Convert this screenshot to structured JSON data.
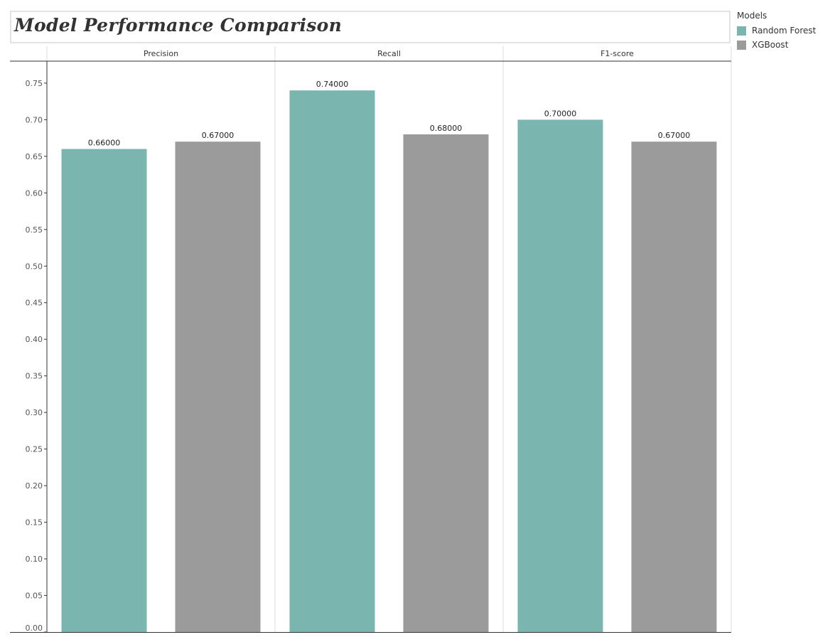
{
  "title": "Model Performance Comparison",
  "legend": {
    "title": "Models",
    "items": [
      {
        "label": "Random Forest",
        "color": "#7ab5b0"
      },
      {
        "label": "XGBoost",
        "color": "#9b9b9b"
      }
    ]
  },
  "chart_data": {
    "type": "bar",
    "title": "Model Performance Comparison",
    "facets": [
      "Precision",
      "Recall",
      "F1-score"
    ],
    "series": [
      {
        "name": "Random Forest",
        "color": "#7ab5b0",
        "values": [
          0.66,
          0.74,
          0.7
        ]
      },
      {
        "name": "XGBoost",
        "color": "#9b9b9b",
        "values": [
          0.67,
          0.68,
          0.67
        ]
      }
    ],
    "value_labels": [
      [
        "0.66000",
        "0.74000",
        "0.70000"
      ],
      [
        "0.67000",
        "0.68000",
        "0.67000"
      ]
    ],
    "ylim": [
      0,
      0.78
    ],
    "yticks": [
      "0.00",
      "0.05",
      "0.10",
      "0.15",
      "0.20",
      "0.25",
      "0.30",
      "0.35",
      "0.40",
      "0.45",
      "0.50",
      "0.55",
      "0.60",
      "0.65",
      "0.70",
      "0.75"
    ],
    "grid": false,
    "legend_position": "top-right"
  }
}
